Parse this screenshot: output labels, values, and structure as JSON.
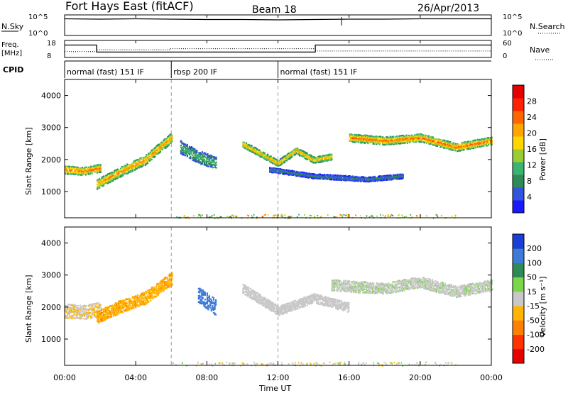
{
  "header": {
    "station": "Fort Hays East (fitACF)",
    "beam": "Beam 18",
    "date": "26/Apr/2013"
  },
  "noise_panel": {
    "left_label": "N.Sky",
    "right_label": "N.Search",
    "left_ticks": [
      "10^5",
      "10^0"
    ],
    "right_ticks": [
      "10^5",
      "10^0"
    ]
  },
  "freq_panel": {
    "left_label_1": "Freq.",
    "left_label_2": "[MHz]",
    "right_label": "Nave",
    "left_ticks": [
      "18",
      "8"
    ],
    "right_ticks": [
      "60",
      "0"
    ]
  },
  "cpid_panel": {
    "label": "CPID",
    "modes": [
      {
        "name": "normal (fast) 151 IF",
        "start": 0,
        "end": 6
      },
      {
        "name": "rbsp 200 IF",
        "start": 6,
        "end": 12
      },
      {
        "name": "normal (fast) 151 IF",
        "start": 12,
        "end": 24
      }
    ]
  },
  "power_panel": {
    "ylabel": "Slant Range [km]",
    "yticks": [
      "1000",
      "2000",
      "3000",
      "4000"
    ],
    "colorbar_label": "Power [dB]",
    "colorbar_ticks": [
      "4",
      "8",
      "12",
      "16",
      "20",
      "24",
      "28"
    ],
    "colors": [
      "#1a1aff",
      "#3355dd",
      "#2e8b57",
      "#3cb371",
      "#9acd32",
      "#ffd700",
      "#ffa500",
      "#ff6600",
      "#ff2200",
      "#e60000"
    ]
  },
  "velocity_panel": {
    "ylabel": "Slant Range [km]",
    "yticks": [
      "1000",
      "2000",
      "3000",
      "4000"
    ],
    "colorbar_label": "Velocity [m s⁻¹]",
    "colorbar_ticks": [
      "200",
      "100",
      "50",
      "15",
      "-15",
      "-50",
      "-100",
      "-200"
    ],
    "colors": [
      "#1a3fd6",
      "#3f7ad8",
      "#2e8b57",
      "#7cd64a",
      "#c8c8c8",
      "#ffb400",
      "#ff8000",
      "#ff3300",
      "#e60000"
    ]
  },
  "xaxis": {
    "label": "Time UT",
    "ticks": [
      "00:00",
      "04:00",
      "08:00",
      "12:00",
      "16:00",
      "20:00",
      "00:00"
    ]
  },
  "chart_data": [
    {
      "type": "line",
      "title": "Fort Hays East (fitACF) Beam 18 26/Apr/2013",
      "series": [
        {
          "name": "N.Sky",
          "x_hours": [
            0,
            2,
            4,
            6,
            8,
            10,
            12,
            14,
            16,
            18,
            20,
            22,
            24
          ],
          "values_log10": [
            4.3,
            4.2,
            4.3,
            4.2,
            4.1,
            4.1,
            4.0,
            4.1,
            4.2,
            4.2,
            4.3,
            4.3,
            4.3
          ]
        },
        {
          "name": "N.Search",
          "x_hours": [
            0,
            24
          ],
          "values_log10": [
            0.0,
            0.0
          ]
        }
      ],
      "ylim": [
        0,
        5
      ]
    },
    {
      "type": "line",
      "series": [
        {
          "name": "Freq. [MHz]",
          "x_hours": [
            0,
            1.8,
            1.8,
            12.0,
            14.1,
            14.1,
            24
          ],
          "values": [
            15.5,
            15.5,
            11.0,
            11.0,
            11.0,
            15.5,
            15.5
          ]
        },
        {
          "name": "Nave",
          "x_hours": [
            0,
            1.8,
            1.8,
            5.9,
            5.9,
            14.1,
            14.1,
            24
          ],
          "values": [
            20,
            20,
            27,
            27,
            31,
            31,
            22,
            22
          ]
        }
      ],
      "freq_ylim": [
        8,
        18
      ],
      "nave_ylim": [
        0,
        60
      ]
    },
    {
      "type": "heatmap",
      "title": "Power [dB]",
      "xlabel": "Time UT",
      "ylabel": "Slant Range [km]",
      "xlim_hours": [
        0,
        24
      ],
      "ylim_km": [
        180,
        4500
      ],
      "zlim": [
        0,
        30
      ],
      "echo_bands": [
        {
          "x_hours": [
            0,
            1,
            2
          ],
          "range_km": [
            1700,
            1650,
            1750
          ],
          "width_km": 250,
          "peak_db": 26
        },
        {
          "x_hours": [
            1.8,
            3,
            4.5,
            6
          ],
          "range_km": [
            1250,
            1600,
            2000,
            2700
          ],
          "width_km": 300,
          "peak_db": 24
        },
        {
          "x_hours": [
            6.5,
            7.5,
            8.5
          ],
          "range_km": [
            2400,
            2100,
            1900
          ],
          "width_km": 400,
          "peak_db": 12
        },
        {
          "x_hours": [
            10,
            11,
            12,
            13,
            14,
            15
          ],
          "range_km": [
            2500,
            2200,
            1900,
            2300,
            2000,
            2100
          ],
          "width_km": 200,
          "peak_db": 22
        },
        {
          "x_hours": [
            11.5,
            14,
            17,
            19
          ],
          "range_km": [
            1700,
            1500,
            1400,
            1500
          ],
          "width_km": 150,
          "peak_db": 8
        },
        {
          "x_hours": [
            16,
            18,
            20,
            22,
            24
          ],
          "range_km": [
            2700,
            2600,
            2700,
            2400,
            2600
          ],
          "width_km": 250,
          "peak_db": 26
        }
      ]
    },
    {
      "type": "heatmap",
      "title": "Velocity [m s⁻¹]",
      "xlabel": "Time UT",
      "ylabel": "Slant Range [km]",
      "xlim_hours": [
        0,
        24
      ],
      "ylim_km": [
        180,
        4500
      ],
      "zlim": [
        -200,
        200
      ],
      "echo_bands": [
        {
          "x_hours": [
            0,
            1,
            2
          ],
          "range_km": [
            1900,
            1850,
            1950
          ],
          "width_km": 450,
          "velocity": -10
        },
        {
          "x_hours": [
            1.8,
            3,
            4.5,
            6
          ],
          "range_km": [
            1700,
            2000,
            2300,
            2900
          ],
          "width_km": 400,
          "velocity": -40
        },
        {
          "x_hours": [
            7.5,
            8.5
          ],
          "range_km": [
            2400,
            2000
          ],
          "width_km": 500,
          "velocity": 120
        },
        {
          "x_hours": [
            10,
            12,
            14,
            16
          ],
          "range_km": [
            2600,
            1900,
            2300,
            2000
          ],
          "width_km": 300,
          "velocity": 0
        },
        {
          "x_hours": [
            15,
            18,
            20,
            22,
            24
          ],
          "range_km": [
            2700,
            2600,
            2800,
            2500,
            2700
          ],
          "width_km": 350,
          "velocity": 5
        }
      ]
    }
  ]
}
